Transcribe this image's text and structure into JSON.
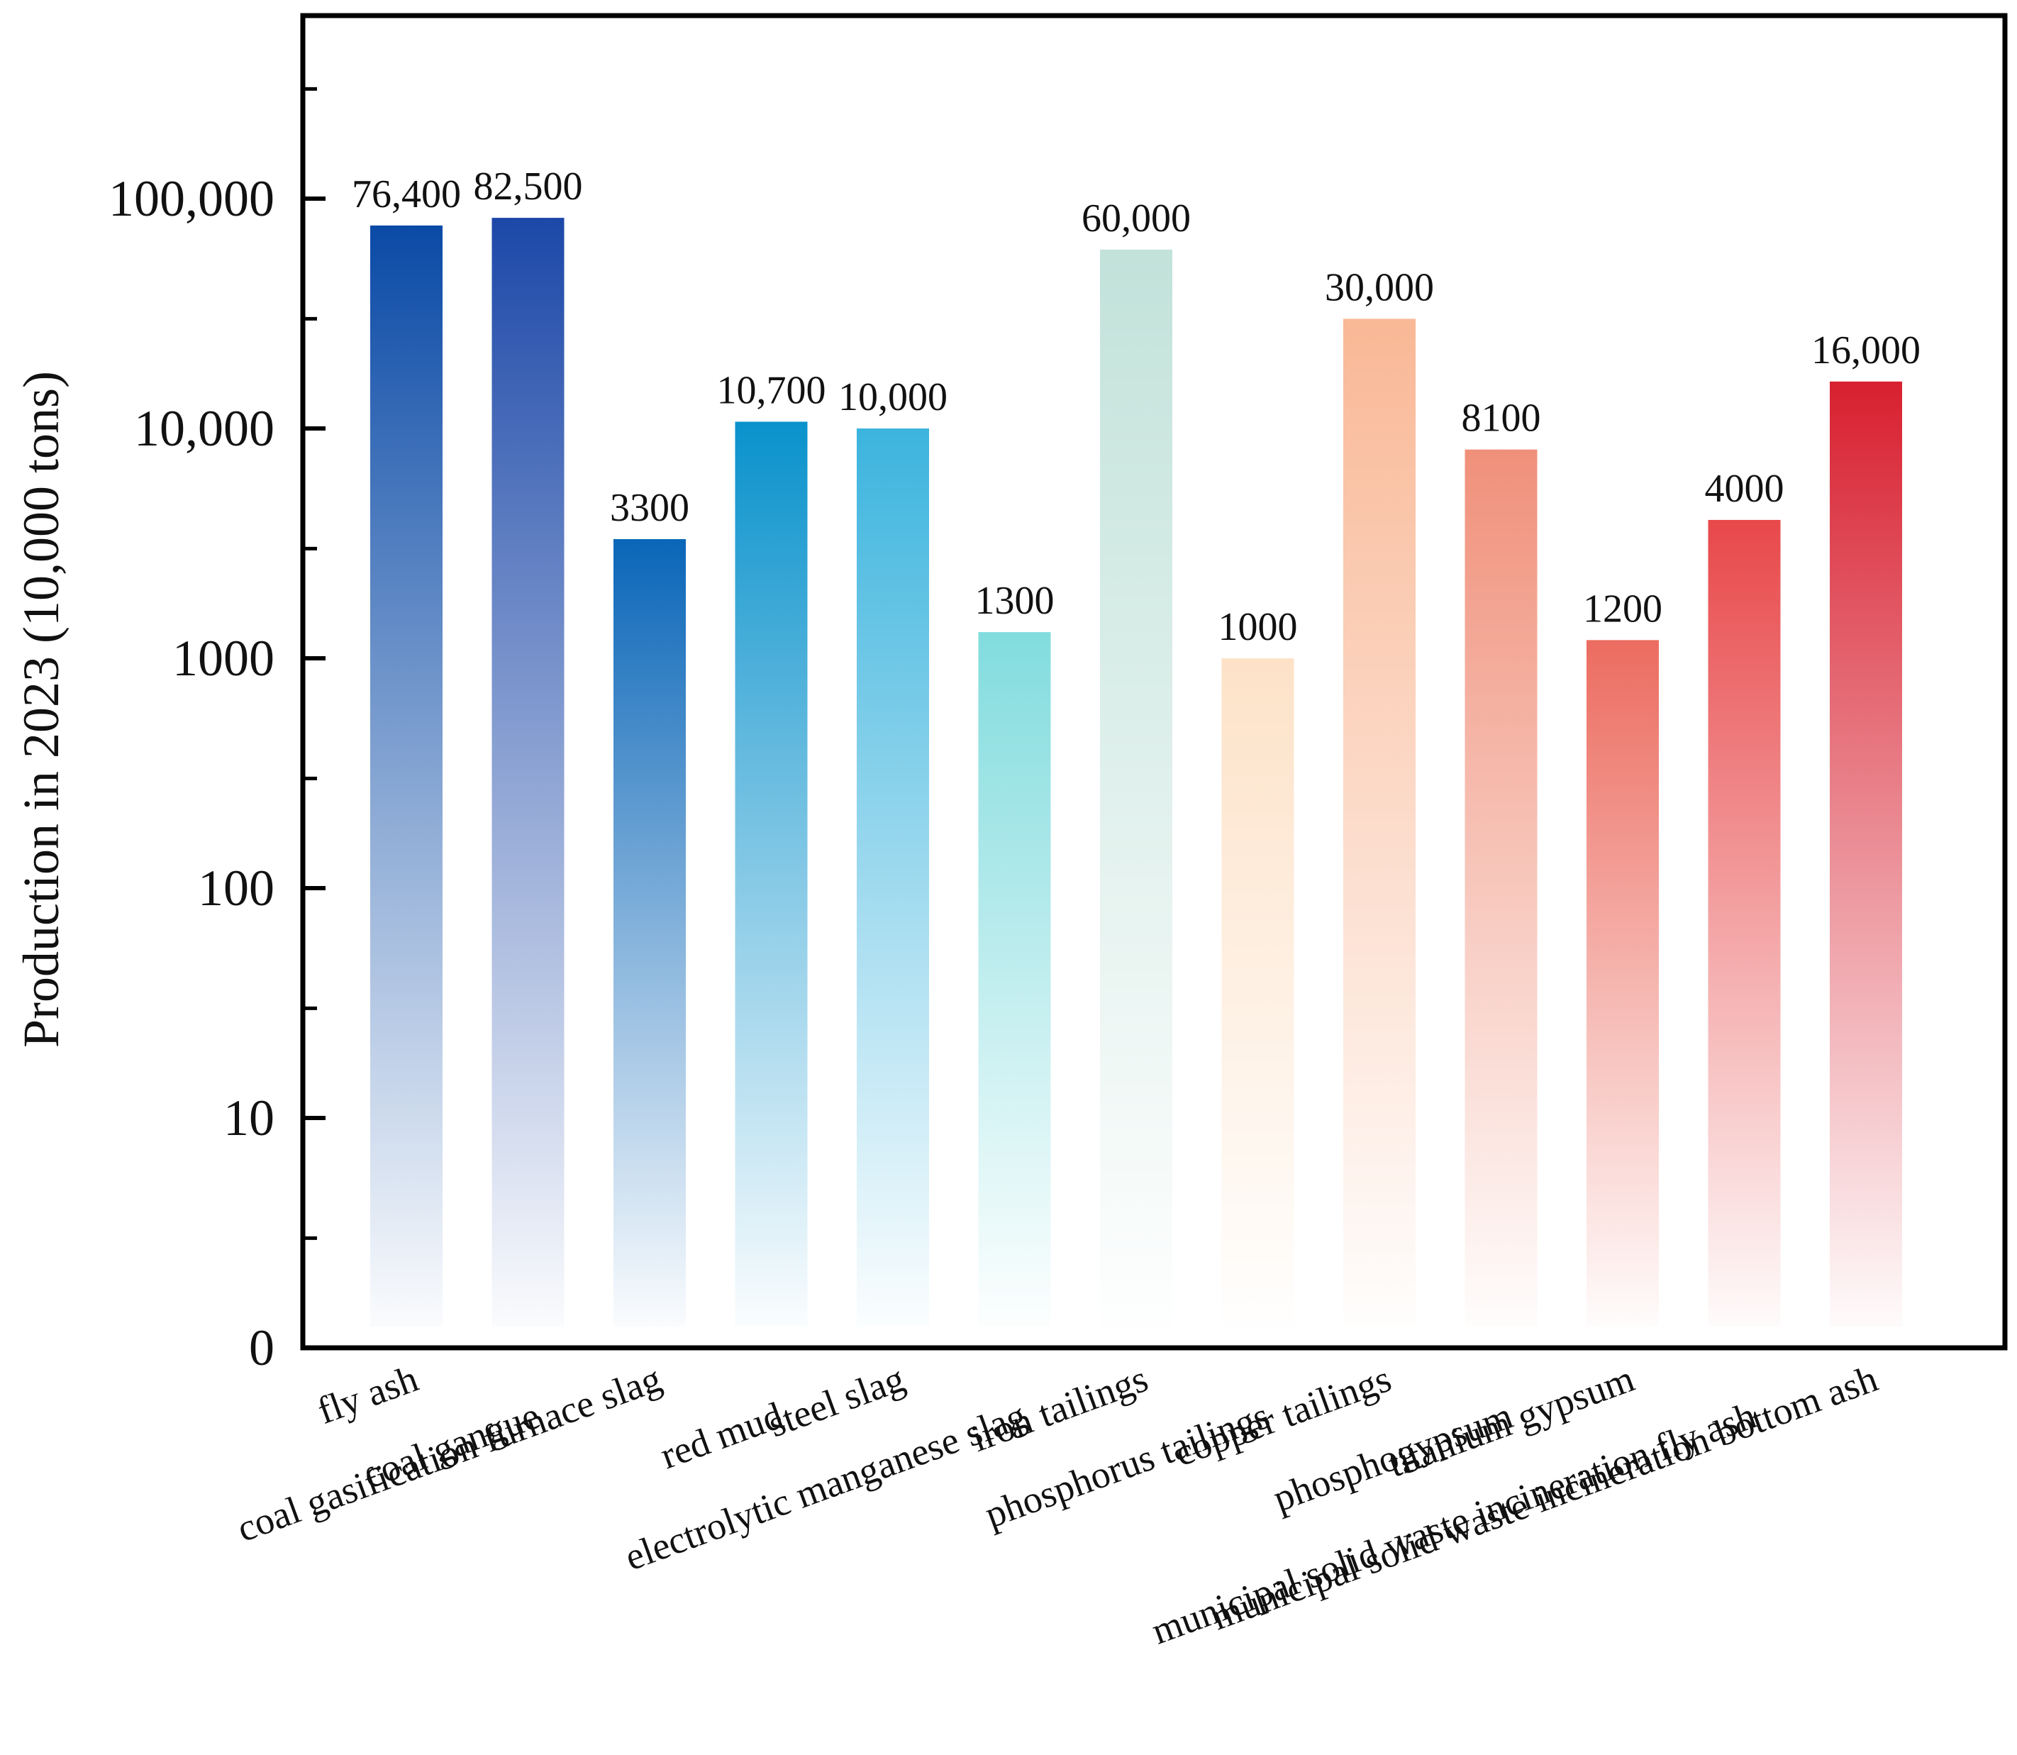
{
  "chart_data": {
    "type": "bar",
    "scale": "log",
    "title": "",
    "xlabel": "",
    "ylabel": "Production in 2023 (10,000 tons)",
    "ylim": [
      1,
      1000000
    ],
    "yticks": [
      {
        "value": 1,
        "label": "0"
      },
      {
        "value": 10,
        "label": "10"
      },
      {
        "value": 100,
        "label": "100"
      },
      {
        "value": 1000,
        "label": "1000"
      },
      {
        "value": 10000,
        "label": "10,000"
      },
      {
        "value": 100000,
        "label": "100,000"
      }
    ],
    "minor_ticks": [
      3,
      30,
      300,
      3000,
      30000,
      300000
    ],
    "grid": false,
    "categories": [
      "fly ash",
      "coal gangue",
      "coal gasification furnace slag",
      "red mud",
      "steel slag",
      "electrolytic manganese slag",
      "iron tailings",
      "phosphorus tailings",
      "copper tailings",
      "phosphogypsum",
      "titanium gypsum",
      "municipal solid waste incineration fly ash",
      "municipal solid waste incineration bottom ash"
    ],
    "values": [
      76400,
      82500,
      3300,
      10700,
      10000,
      1300,
      60000,
      1000,
      30000,
      8100,
      1200,
      4000,
      16000
    ],
    "value_labels": [
      "76,400",
      "82,500",
      "3300",
      "10,700",
      "10,000",
      "1300",
      "60,000",
      "1000",
      "30,000",
      "8100",
      "1200",
      "4000",
      "16,000"
    ],
    "colors": [
      "#0a4aa6",
      "#1c48a8",
      "#0a66b8",
      "#0a92cc",
      "#3cb4de",
      "#82dcde",
      "#c2e2da",
      "#fde2c8",
      "#f9b896",
      "#f0907a",
      "#ec6c60",
      "#e8484a",
      "#d82030"
    ]
  }
}
